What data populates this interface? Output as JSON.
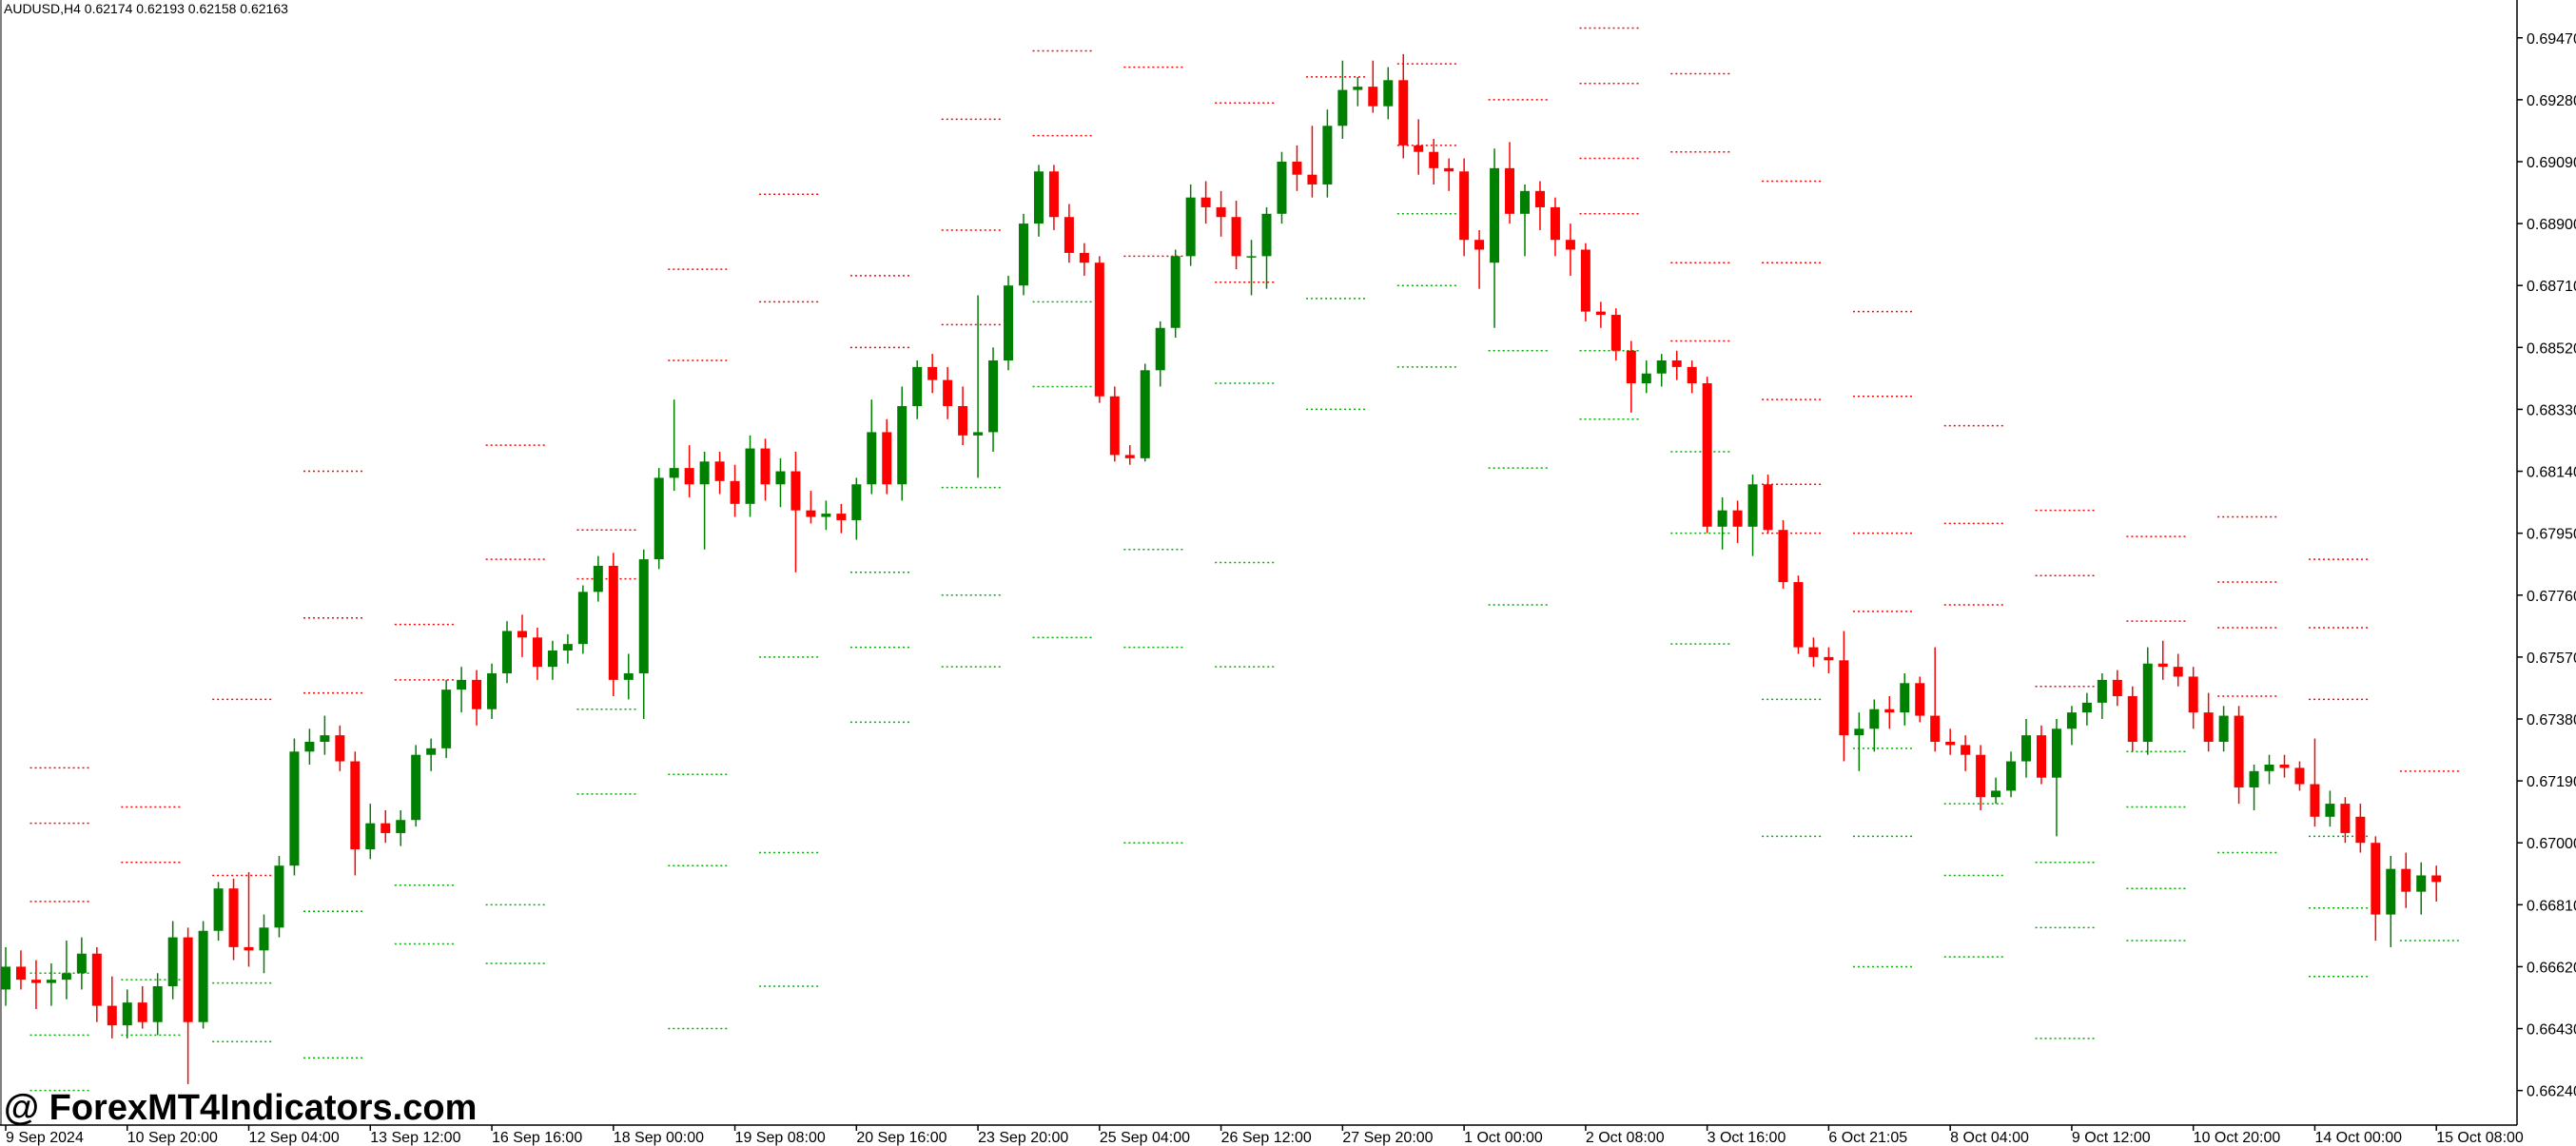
{
  "chart_data": {
    "type": "candlestick",
    "title": "AUDUSD,H4  0.62174 0.62193 0.62158 0.62163",
    "watermark": "@ ForexMT4Indicators.com",
    "up_color": "#008000",
    "down_color": "#ff0000",
    "resistance_color": "#ff0000",
    "support_color": "#00b000",
    "ylim": [
      0.66134,
      0.69586
    ],
    "yticks": [
      {
        "value": 0.6624,
        "label": "0.66240"
      },
      {
        "value": 0.6643,
        "label": "0.66430"
      },
      {
        "value": 0.6662,
        "label": "0.66620"
      },
      {
        "value": 0.6681,
        "label": "0.66810"
      },
      {
        "value": 0.67,
        "label": "0.67000"
      },
      {
        "value": 0.6719,
        "label": "0.67190"
      },
      {
        "value": 0.6738,
        "label": "0.67380"
      },
      {
        "value": 0.6757,
        "label": "0.67570"
      },
      {
        "value": 0.6776,
        "label": "0.67760"
      },
      {
        "value": 0.6795,
        "label": "0.67950"
      },
      {
        "value": 0.6814,
        "label": "0.68140"
      },
      {
        "value": 0.6833,
        "label": "0.68330"
      },
      {
        "value": 0.6852,
        "label": "0.68520"
      },
      {
        "value": 0.6871,
        "label": "0.68710"
      },
      {
        "value": 0.689,
        "label": "0.68900"
      },
      {
        "value": 0.6909,
        "label": "0.69090"
      },
      {
        "value": 0.6928,
        "label": "0.69280"
      },
      {
        "value": 0.6947,
        "label": "0.69470"
      }
    ],
    "categories": [
      "9 Sep 2024",
      null,
      null,
      null,
      null,
      null,
      null,
      null,
      "10 Sep 20:00",
      null,
      null,
      null,
      null,
      null,
      null,
      null,
      "12 Sep 04:00",
      null,
      null,
      null,
      null,
      null,
      null,
      null,
      "13 Sep 12:00",
      null,
      null,
      null,
      null,
      null,
      null,
      null,
      "16 Sep 16:00",
      null,
      null,
      null,
      null,
      null,
      null,
      null,
      "18 Sep 00:00",
      null,
      null,
      null,
      null,
      null,
      null,
      null,
      "19 Sep 08:00",
      null,
      null,
      null,
      null,
      null,
      null,
      null,
      "20 Sep 16:00",
      null,
      null,
      null,
      null,
      null,
      null,
      null,
      "23 Sep 20:00",
      null,
      null,
      null,
      null,
      null,
      null,
      null,
      "25 Sep 04:00",
      null,
      null,
      null,
      null,
      null,
      null,
      null,
      "26 Sep 12:00",
      null,
      null,
      null,
      null,
      null,
      null,
      null,
      "27 Sep 20:00",
      null,
      null,
      null,
      null,
      null,
      null,
      null,
      "1 Oct 00:00",
      null,
      null,
      null,
      null,
      null,
      null,
      null,
      "2 Oct 08:00",
      null,
      null,
      null,
      null,
      null,
      null,
      null,
      "3 Oct 16:00",
      null,
      null,
      null,
      null,
      null,
      null,
      null,
      "6 Oct 21:05",
      null,
      null,
      null,
      null,
      null,
      null,
      null,
      "8 Oct 04:00",
      null,
      null,
      null,
      null,
      null,
      null,
      null,
      "9 Oct 12:00",
      null,
      null,
      null,
      null,
      null,
      null,
      null,
      "10 Oct 20:00",
      null,
      null,
      null,
      null,
      null,
      null,
      null,
      "14 Oct 00:00",
      null,
      null,
      null,
      null,
      null,
      null,
      null,
      "15 Oct 08:00"
    ],
    "candles": [
      [
        0.6655,
        0.6668,
        0.665,
        0.6662
      ],
      [
        0.6662,
        0.6667,
        0.6655,
        0.6658
      ],
      [
        0.6658,
        0.6664,
        0.6649,
        0.6657
      ],
      [
        0.6657,
        0.6663,
        0.665,
        0.6658
      ],
      [
        0.6658,
        0.667,
        0.6652,
        0.666
      ],
      [
        0.666,
        0.6671,
        0.6655,
        0.6666
      ],
      [
        0.6666,
        0.6668,
        0.6645,
        0.665
      ],
      [
        0.665,
        0.6659,
        0.664,
        0.6644
      ],
      [
        0.6644,
        0.6655,
        0.664,
        0.6651
      ],
      [
        0.6651,
        0.6656,
        0.6643,
        0.6645
      ],
      [
        0.6645,
        0.666,
        0.6641,
        0.6656
      ],
      [
        0.6656,
        0.6676,
        0.6652,
        0.6671
      ],
      [
        0.6671,
        0.6674,
        0.6626,
        0.6645
      ],
      [
        0.6645,
        0.6676,
        0.6643,
        0.6673
      ],
      [
        0.6673,
        0.6688,
        0.667,
        0.6686
      ],
      [
        0.6686,
        0.6689,
        0.6664,
        0.6668
      ],
      [
        0.6668,
        0.6691,
        0.6662,
        0.6667
      ],
      [
        0.6667,
        0.6678,
        0.666,
        0.6674
      ],
      [
        0.6674,
        0.6696,
        0.6671,
        0.6693
      ],
      [
        0.6693,
        0.6732,
        0.669,
        0.6728
      ],
      [
        0.6728,
        0.6735,
        0.6724,
        0.6731
      ],
      [
        0.6731,
        0.6739,
        0.6727,
        0.6733
      ],
      [
        0.6733,
        0.6736,
        0.6722,
        0.6725
      ],
      [
        0.6725,
        0.6728,
        0.669,
        0.6698
      ],
      [
        0.6698,
        0.6712,
        0.6695,
        0.6706
      ],
      [
        0.6706,
        0.671,
        0.67,
        0.6703
      ],
      [
        0.6703,
        0.671,
        0.6699,
        0.6707
      ],
      [
        0.6707,
        0.673,
        0.6705,
        0.6727
      ],
      [
        0.6727,
        0.6732,
        0.6722,
        0.6729
      ],
      [
        0.6729,
        0.675,
        0.6726,
        0.6747
      ],
      [
        0.6747,
        0.6754,
        0.674,
        0.675
      ],
      [
        0.675,
        0.6753,
        0.6736,
        0.6741
      ],
      [
        0.6741,
        0.6755,
        0.6738,
        0.6752
      ],
      [
        0.6752,
        0.6768,
        0.6749,
        0.6765
      ],
      [
        0.6765,
        0.677,
        0.6757,
        0.6763
      ],
      [
        0.6763,
        0.6766,
        0.675,
        0.6754
      ],
      [
        0.6754,
        0.6762,
        0.675,
        0.6759
      ],
      [
        0.6759,
        0.6764,
        0.6755,
        0.6761
      ],
      [
        0.6761,
        0.6779,
        0.6758,
        0.6777
      ],
      [
        0.6777,
        0.6788,
        0.6774,
        0.6785
      ],
      [
        0.6785,
        0.6789,
        0.6745,
        0.675
      ],
      [
        0.675,
        0.6758,
        0.6744,
        0.6752
      ],
      [
        0.6752,
        0.679,
        0.6738,
        0.6787
      ],
      [
        0.6787,
        0.6815,
        0.6784,
        0.6812
      ],
      [
        0.6812,
        0.6836,
        0.6808,
        0.6815
      ],
      [
        0.6815,
        0.6822,
        0.6806,
        0.681
      ],
      [
        0.681,
        0.682,
        0.679,
        0.6817
      ],
      [
        0.6817,
        0.682,
        0.6807,
        0.6811
      ],
      [
        0.6811,
        0.6816,
        0.68,
        0.6804
      ],
      [
        0.6804,
        0.6825,
        0.68,
        0.6821
      ],
      [
        0.6821,
        0.6824,
        0.6805,
        0.681
      ],
      [
        0.681,
        0.6818,
        0.6803,
        0.6814
      ],
      [
        0.6814,
        0.682,
        0.6783,
        0.6802
      ],
      [
        0.6802,
        0.6808,
        0.6798,
        0.68
      ],
      [
        0.68,
        0.6805,
        0.6796,
        0.6801
      ],
      [
        0.6801,
        0.6804,
        0.6795,
        0.6799
      ],
      [
        0.6799,
        0.6812,
        0.6793,
        0.681
      ],
      [
        0.681,
        0.6836,
        0.6807,
        0.6826
      ],
      [
        0.6826,
        0.683,
        0.6807,
        0.681
      ],
      [
        0.681,
        0.684,
        0.6805,
        0.6834
      ],
      [
        0.6834,
        0.6848,
        0.683,
        0.6846
      ],
      [
        0.6846,
        0.685,
        0.6838,
        0.6842
      ],
      [
        0.6842,
        0.6846,
        0.683,
        0.6834
      ],
      [
        0.6834,
        0.684,
        0.6822,
        0.6825
      ],
      [
        0.6825,
        0.6868,
        0.6812,
        0.6826
      ],
      [
        0.6826,
        0.6852,
        0.682,
        0.6848
      ],
      [
        0.6848,
        0.6874,
        0.6845,
        0.6871
      ],
      [
        0.6871,
        0.6893,
        0.6868,
        0.689
      ],
      [
        0.689,
        0.6908,
        0.6886,
        0.6906
      ],
      [
        0.6906,
        0.6908,
        0.6888,
        0.6892
      ],
      [
        0.6892,
        0.6896,
        0.6878,
        0.6881
      ],
      [
        0.6881,
        0.6884,
        0.6874,
        0.6878
      ],
      [
        0.6878,
        0.688,
        0.6835,
        0.6837
      ],
      [
        0.6837,
        0.684,
        0.6817,
        0.6819
      ],
      [
        0.6819,
        0.6822,
        0.6816,
        0.6818
      ],
      [
        0.6818,
        0.6847,
        0.6817,
        0.6845
      ],
      [
        0.6845,
        0.686,
        0.684,
        0.6858
      ],
      [
        0.6858,
        0.6882,
        0.6855,
        0.688
      ],
      [
        0.688,
        0.6902,
        0.6877,
        0.6898
      ],
      [
        0.6898,
        0.6903,
        0.689,
        0.6895
      ],
      [
        0.6895,
        0.69,
        0.6886,
        0.6892
      ],
      [
        0.6892,
        0.6897,
        0.6876,
        0.688
      ],
      [
        0.688,
        0.6885,
        0.6868,
        0.688
      ],
      [
        0.688,
        0.6895,
        0.687,
        0.6893
      ],
      [
        0.6893,
        0.6912,
        0.689,
        0.6909
      ],
      [
        0.6909,
        0.6914,
        0.69,
        0.6905
      ],
      [
        0.6905,
        0.692,
        0.6898,
        0.6902
      ],
      [
        0.6902,
        0.6925,
        0.6898,
        0.692
      ],
      [
        0.692,
        0.694,
        0.6916,
        0.6931
      ],
      [
        0.6931,
        0.6935,
        0.6926,
        0.6932
      ],
      [
        0.6932,
        0.694,
        0.6924,
        0.6926
      ],
      [
        0.6926,
        0.6938,
        0.6922,
        0.6934
      ],
      [
        0.6934,
        0.6942,
        0.691,
        0.6914
      ],
      [
        0.6914,
        0.6922,
        0.6905,
        0.6912
      ],
      [
        0.6912,
        0.6916,
        0.6902,
        0.6907
      ],
      [
        0.6907,
        0.691,
        0.69,
        0.6906
      ],
      [
        0.6906,
        0.691,
        0.688,
        0.6885
      ],
      [
        0.6885,
        0.6888,
        0.687,
        0.6882
      ],
      [
        0.6878,
        0.6913,
        0.6858,
        0.6907
      ],
      [
        0.6907,
        0.6915,
        0.689,
        0.6893
      ],
      [
        0.6893,
        0.6902,
        0.688,
        0.69
      ],
      [
        0.69,
        0.6903,
        0.6888,
        0.6895
      ],
      [
        0.6895,
        0.6898,
        0.688,
        0.6885
      ],
      [
        0.6885,
        0.689,
        0.6874,
        0.6882
      ],
      [
        0.6882,
        0.6884,
        0.686,
        0.6863
      ],
      [
        0.6863,
        0.6866,
        0.6858,
        0.6862
      ],
      [
        0.6862,
        0.6864,
        0.6848,
        0.6851
      ],
      [
        0.6851,
        0.6854,
        0.6832,
        0.6841
      ],
      [
        0.6841,
        0.6848,
        0.6838,
        0.6844
      ],
      [
        0.6844,
        0.685,
        0.684,
        0.6848
      ],
      [
        0.6848,
        0.6851,
        0.6842,
        0.6846
      ],
      [
        0.6846,
        0.6848,
        0.6838,
        0.6841
      ],
      [
        0.6841,
        0.6843,
        0.6795,
        0.6797
      ],
      [
        0.6797,
        0.6806,
        0.679,
        0.6802
      ],
      [
        0.6802,
        0.6805,
        0.6792,
        0.6797
      ],
      [
        0.6797,
        0.6813,
        0.6788,
        0.681
      ],
      [
        0.681,
        0.6813,
        0.6795,
        0.6796
      ],
      [
        0.6796,
        0.6799,
        0.6778,
        0.678
      ],
      [
        0.678,
        0.6782,
        0.6758,
        0.676
      ],
      [
        0.676,
        0.6763,
        0.6754,
        0.6757
      ],
      [
        0.6757,
        0.676,
        0.6752,
        0.6756
      ],
      [
        0.6756,
        0.6765,
        0.6725,
        0.6733
      ],
      [
        0.6733,
        0.674,
        0.6722,
        0.6735
      ],
      [
        0.6735,
        0.6744,
        0.6728,
        0.6741
      ],
      [
        0.6741,
        0.6745,
        0.6735,
        0.674
      ],
      [
        0.674,
        0.6752,
        0.6736,
        0.6749
      ],
      [
        0.6749,
        0.6751,
        0.6737,
        0.6739
      ],
      [
        0.6739,
        0.676,
        0.6728,
        0.6731
      ],
      [
        0.6731,
        0.6735,
        0.6727,
        0.673
      ],
      [
        0.673,
        0.6733,
        0.6722,
        0.6727
      ],
      [
        0.6727,
        0.673,
        0.671,
        0.6714
      ],
      [
        0.6714,
        0.672,
        0.6712,
        0.6716
      ],
      [
        0.6716,
        0.6728,
        0.6714,
        0.6725
      ],
      [
        0.6725,
        0.6738,
        0.672,
        0.6733
      ],
      [
        0.6733,
        0.6736,
        0.6718,
        0.672
      ],
      [
        0.672,
        0.6738,
        0.6702,
        0.6735
      ],
      [
        0.6735,
        0.6742,
        0.673,
        0.674
      ],
      [
        0.674,
        0.6746,
        0.6736,
        0.6743
      ],
      [
        0.6743,
        0.6752,
        0.6738,
        0.675
      ],
      [
        0.675,
        0.6753,
        0.6742,
        0.6745
      ],
      [
        0.6745,
        0.6748,
        0.6728,
        0.6731
      ],
      [
        0.6731,
        0.676,
        0.6727,
        0.6755
      ],
      [
        0.6755,
        0.6762,
        0.675,
        0.6754
      ],
      [
        0.6754,
        0.6758,
        0.6748,
        0.6751
      ],
      [
        0.6751,
        0.6754,
        0.6735,
        0.674
      ],
      [
        0.674,
        0.6746,
        0.6728,
        0.6731
      ],
      [
        0.6731,
        0.6742,
        0.6728,
        0.6739
      ],
      [
        0.6739,
        0.6742,
        0.6712,
        0.6717
      ],
      [
        0.6717,
        0.6724,
        0.671,
        0.6722
      ],
      [
        0.6722,
        0.6727,
        0.6718,
        0.6724
      ],
      [
        0.6724,
        0.6727,
        0.672,
        0.6723
      ],
      [
        0.6723,
        0.6725,
        0.6716,
        0.6718
      ],
      [
        0.6718,
        0.6732,
        0.6705,
        0.6708
      ],
      [
        0.6708,
        0.6716,
        0.6705,
        0.6712
      ],
      [
        0.6712,
        0.6714,
        0.67,
        0.6703
      ],
      [
        0.6708,
        0.6712,
        0.6697,
        0.67
      ],
      [
        0.67,
        0.6702,
        0.667,
        0.6678
      ],
      [
        0.6678,
        0.6696,
        0.6668,
        0.6692
      ],
      [
        0.6692,
        0.6697,
        0.668,
        0.6685
      ],
      [
        0.6685,
        0.6694,
        0.6678,
        0.669
      ],
      [
        0.669,
        0.6693,
        0.6682,
        0.6688
      ]
    ],
    "resistance_levels": [
      [
        0.6723,
        0.6706,
        0.6682
      ],
      [
        0.6711,
        0.6694
      ],
      [
        0.6744,
        0.669
      ],
      [
        0.6814,
        0.6769,
        0.6746
      ],
      [
        0.6767,
        0.675
      ],
      [
        0.6822,
        0.6787
      ],
      [
        0.6796,
        0.6781
      ],
      [
        0.6876,
        0.6848
      ],
      [
        0.6899,
        0.6866
      ],
      [
        0.6874,
        0.6852
      ],
      [
        0.6922,
        0.6888,
        0.6859
      ],
      [
        0.6943,
        0.6917
      ],
      [
        0.6938,
        0.688
      ],
      [
        0.6927,
        0.6872
      ],
      [
        0.6935
      ],
      [
        0.6939,
        0.6914
      ],
      [
        0.6928
      ],
      [
        0.695,
        0.6933,
        0.691,
        0.6893
      ],
      [
        0.6936,
        0.6912,
        0.6878,
        0.6854
      ],
      [
        0.6903,
        0.6878,
        0.6836,
        0.681,
        0.6795
      ],
      [
        0.6863,
        0.6837,
        0.6795,
        0.6771
      ],
      [
        0.6828,
        0.6798,
        0.6773
      ],
      [
        0.6802,
        0.6782,
        0.6748
      ],
      [
        0.6794,
        0.6768
      ],
      [
        0.68,
        0.678,
        0.6766,
        0.6745
      ],
      [
        0.6787,
        0.6766,
        0.6744
      ],
      [
        0.6722
      ]
    ],
    "support_levels": [
      [
        0.666,
        0.6641,
        0.6624
      ],
      [
        0.6658,
        0.6641
      ],
      [
        0.6657,
        0.6639
      ],
      [
        0.6679,
        0.6634
      ],
      [
        0.6687,
        0.6669
      ],
      [
        0.6681,
        0.6663
      ],
      [
        0.6741,
        0.6715
      ],
      [
        0.6721,
        0.6693,
        0.6643
      ],
      [
        0.6757,
        0.6697,
        0.6656
      ],
      [
        0.6783,
        0.676,
        0.6737
      ],
      [
        0.6809,
        0.6776,
        0.6754
      ],
      [
        0.6866,
        0.684,
        0.6763
      ],
      [
        0.679,
        0.676,
        0.67
      ],
      [
        0.6841,
        0.6786,
        0.6754
      ],
      [
        0.6867,
        0.6833
      ],
      [
        0.6893,
        0.6871,
        0.6846
      ],
      [
        0.6851,
        0.6815,
        0.6773
      ],
      [
        0.6851,
        0.683
      ],
      [
        0.682,
        0.6795,
        0.6761
      ],
      [
        0.6744,
        0.6702
      ],
      [
        0.6729,
        0.6702,
        0.6662
      ],
      [
        0.6712,
        0.669,
        0.6665
      ],
      [
        0.6694,
        0.6674,
        0.664
      ],
      [
        0.6728,
        0.6711,
        0.6686,
        0.667
      ],
      [
        0.6697
      ],
      [
        0.6702,
        0.668,
        0.6659
      ],
      [
        0.667
      ]
    ]
  }
}
